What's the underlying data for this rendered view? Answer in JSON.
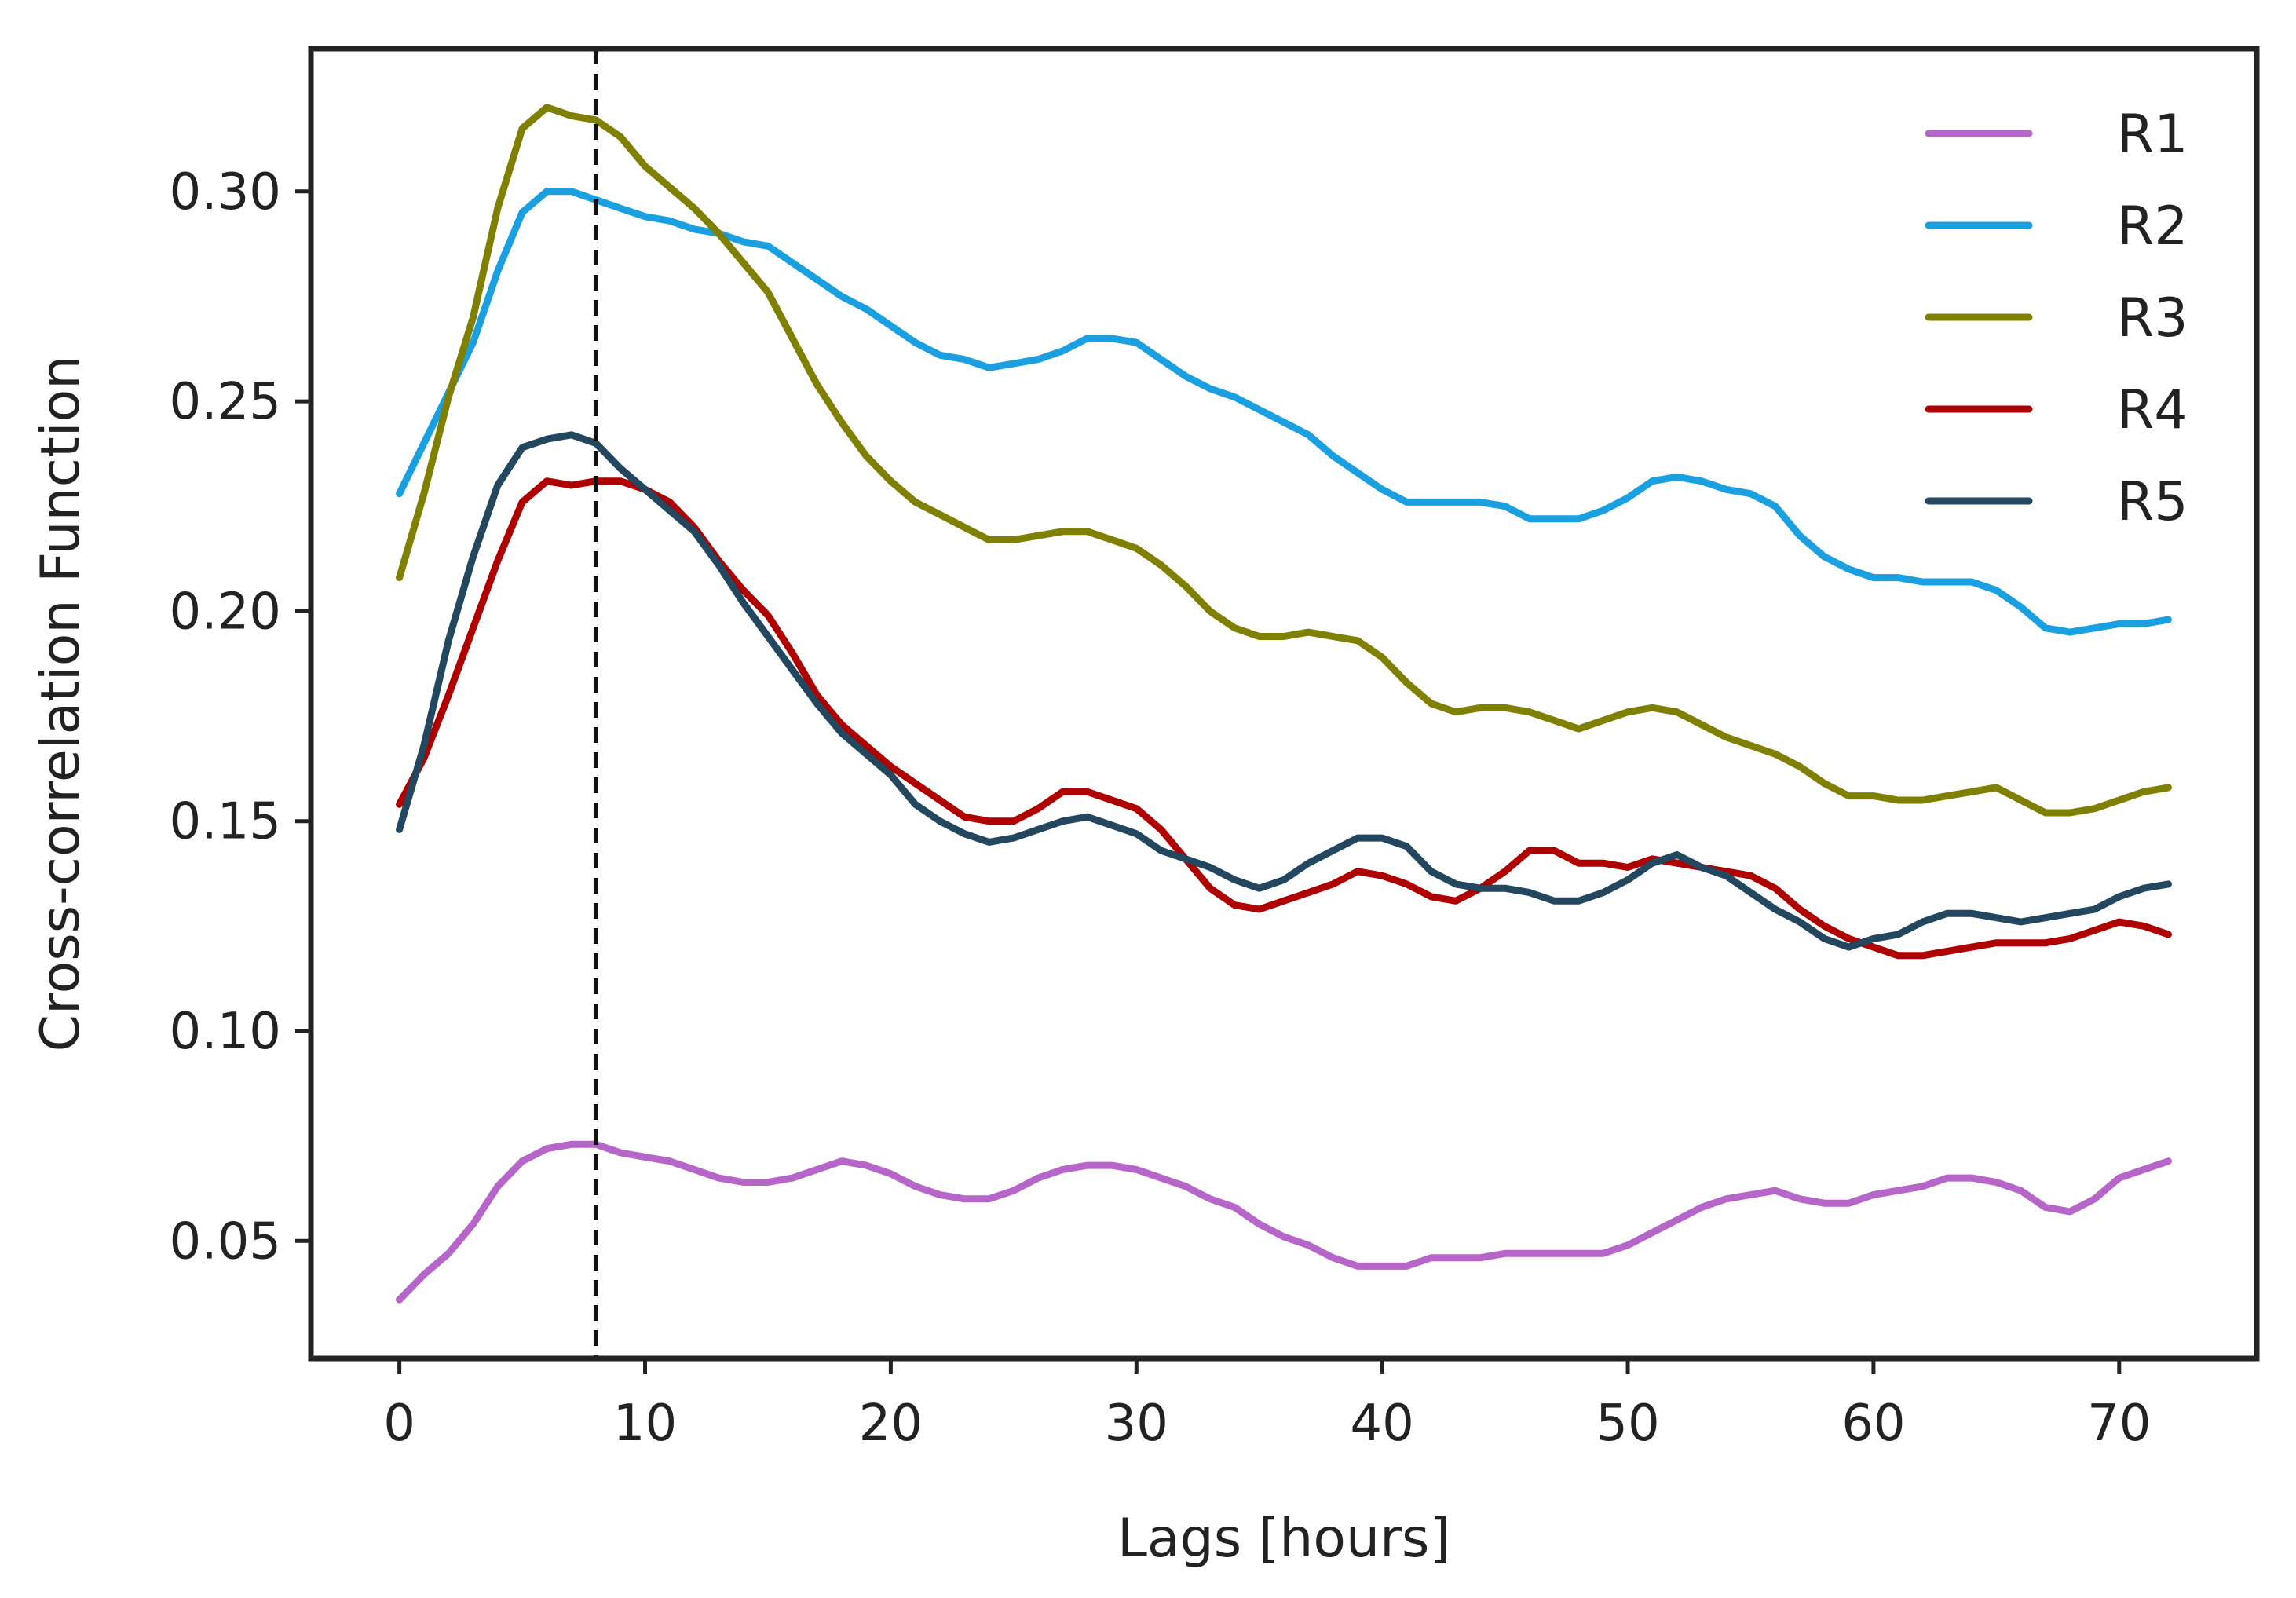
{
  "chart_data": {
    "type": "line",
    "title": "",
    "xlabel": "Lags [hours]",
    "ylabel": "Cross-correlation Function",
    "xlim": [
      -3.6,
      75.6
    ],
    "ylim": [
      0.022,
      0.334
    ],
    "xticks": [
      0,
      10,
      20,
      30,
      40,
      50,
      60,
      70
    ],
    "xtick_labels": [
      "0",
      "10",
      "20",
      "30",
      "40",
      "50",
      "60",
      "70"
    ],
    "yticks": [
      0.05,
      0.1,
      0.15,
      0.2,
      0.25,
      0.3
    ],
    "ytick_labels": [
      "0.05",
      "0.10",
      "0.15",
      "0.20",
      "0.25",
      "0.30"
    ],
    "vline": {
      "x": 8,
      "style": "dashed",
      "color": "#111111"
    },
    "legend_position": "top-right",
    "x": [
      0,
      1,
      2,
      3,
      4,
      5,
      6,
      7,
      8,
      9,
      10,
      11,
      12,
      13,
      14,
      15,
      16,
      17,
      18,
      19,
      20,
      21,
      22,
      23,
      24,
      25,
      26,
      27,
      28,
      29,
      30,
      31,
      32,
      33,
      34,
      35,
      36,
      37,
      38,
      39,
      40,
      41,
      42,
      43,
      44,
      45,
      46,
      47,
      48,
      49,
      50,
      51,
      52,
      53,
      54,
      55,
      56,
      57,
      58,
      59,
      60,
      61,
      62,
      63,
      64,
      65,
      66,
      67,
      68,
      69,
      70,
      71,
      72
    ],
    "series": [
      {
        "name": "R1",
        "color": "#B566C8",
        "values": [
          0.036,
          0.042,
          0.047,
          0.054,
          0.063,
          0.069,
          0.072,
          0.073,
          0.073,
          0.071,
          0.07,
          0.069,
          0.067,
          0.065,
          0.064,
          0.064,
          0.065,
          0.067,
          0.069,
          0.068,
          0.066,
          0.063,
          0.061,
          0.06,
          0.06,
          0.062,
          0.065,
          0.067,
          0.068,
          0.068,
          0.067,
          0.065,
          0.063,
          0.06,
          0.058,
          0.054,
          0.051,
          0.049,
          0.046,
          0.044,
          0.044,
          0.044,
          0.046,
          0.046,
          0.046,
          0.047,
          0.047,
          0.047,
          0.047,
          0.047,
          0.049,
          0.052,
          0.055,
          0.058,
          0.06,
          0.061,
          0.062,
          0.06,
          0.059,
          0.059,
          0.061,
          0.062,
          0.063,
          0.065,
          0.065,
          0.064,
          0.062,
          0.058,
          0.057,
          0.06,
          0.065,
          0.067,
          0.069
        ]
      },
      {
        "name": "R2",
        "color": "#1A9FE0",
        "values": [
          0.228,
          0.24,
          0.252,
          0.264,
          0.281,
          0.295,
          0.3,
          0.3,
          0.298,
          0.296,
          0.294,
          0.293,
          0.291,
          0.29,
          0.288,
          0.287,
          0.283,
          0.279,
          0.275,
          0.272,
          0.268,
          0.264,
          0.261,
          0.26,
          0.258,
          0.259,
          0.26,
          0.262,
          0.265,
          0.265,
          0.264,
          0.26,
          0.256,
          0.253,
          0.251,
          0.248,
          0.245,
          0.242,
          0.237,
          0.233,
          0.229,
          0.226,
          0.226,
          0.226,
          0.226,
          0.225,
          0.222,
          0.222,
          0.222,
          0.224,
          0.227,
          0.231,
          0.232,
          0.231,
          0.229,
          0.228,
          0.225,
          0.218,
          0.213,
          0.21,
          0.208,
          0.208,
          0.207,
          0.207,
          0.207,
          0.205,
          0.201,
          0.196,
          0.195,
          0.196,
          0.197,
          0.197,
          0.198
        ]
      },
      {
        "name": "R3",
        "color": "#7F7F00",
        "values": [
          0.208,
          0.228,
          0.251,
          0.27,
          0.296,
          0.315,
          0.32,
          0.318,
          0.317,
          0.313,
          0.306,
          0.301,
          0.296,
          0.29,
          0.283,
          0.276,
          0.265,
          0.254,
          0.245,
          0.237,
          0.231,
          0.226,
          0.223,
          0.22,
          0.217,
          0.217,
          0.218,
          0.219,
          0.219,
          0.217,
          0.215,
          0.211,
          0.206,
          0.2,
          0.196,
          0.194,
          0.194,
          0.195,
          0.194,
          0.193,
          0.189,
          0.183,
          0.178,
          0.176,
          0.177,
          0.177,
          0.176,
          0.174,
          0.172,
          0.174,
          0.176,
          0.177,
          0.176,
          0.173,
          0.17,
          0.168,
          0.166,
          0.163,
          0.159,
          0.156,
          0.156,
          0.155,
          0.155,
          0.156,
          0.157,
          0.158,
          0.155,
          0.152,
          0.152,
          0.153,
          0.155,
          0.157,
          0.158
        ]
      },
      {
        "name": "R4",
        "color": "#AF0000",
        "values": [
          0.154,
          0.165,
          0.18,
          0.196,
          0.212,
          0.226,
          0.231,
          0.23,
          0.231,
          0.231,
          0.229,
          0.226,
          0.22,
          0.212,
          0.205,
          0.199,
          0.19,
          0.18,
          0.173,
          0.168,
          0.163,
          0.159,
          0.155,
          0.151,
          0.15,
          0.15,
          0.153,
          0.157,
          0.157,
          0.155,
          0.153,
          0.148,
          0.141,
          0.134,
          0.13,
          0.129,
          0.131,
          0.133,
          0.135,
          0.138,
          0.137,
          0.135,
          0.132,
          0.131,
          0.134,
          0.138,
          0.143,
          0.143,
          0.14,
          0.14,
          0.139,
          0.141,
          0.14,
          0.139,
          0.138,
          0.137,
          0.134,
          0.129,
          0.125,
          0.122,
          0.12,
          0.118,
          0.118,
          0.119,
          0.12,
          0.121,
          0.121,
          0.121,
          0.122,
          0.124,
          0.126,
          0.125,
          0.123
        ]
      },
      {
        "name": "R5",
        "color": "#22475E",
        "values": [
          0.148,
          0.168,
          0.193,
          0.213,
          0.23,
          0.239,
          0.241,
          0.242,
          0.24,
          0.234,
          0.229,
          0.224,
          0.219,
          0.211,
          0.202,
          0.194,
          0.186,
          0.178,
          0.171,
          0.166,
          0.161,
          0.154,
          0.15,
          0.147,
          0.145,
          0.146,
          0.148,
          0.15,
          0.151,
          0.149,
          0.147,
          0.143,
          0.141,
          0.139,
          0.136,
          0.134,
          0.136,
          0.14,
          0.143,
          0.146,
          0.146,
          0.144,
          0.138,
          0.135,
          0.134,
          0.134,
          0.133,
          0.131,
          0.131,
          0.133,
          0.136,
          0.14,
          0.142,
          0.139,
          0.137,
          0.133,
          0.129,
          0.126,
          0.122,
          0.12,
          0.122,
          0.123,
          0.126,
          0.128,
          0.128,
          0.127,
          0.126,
          0.127,
          0.128,
          0.129,
          0.132,
          0.134,
          0.135
        ]
      }
    ]
  }
}
